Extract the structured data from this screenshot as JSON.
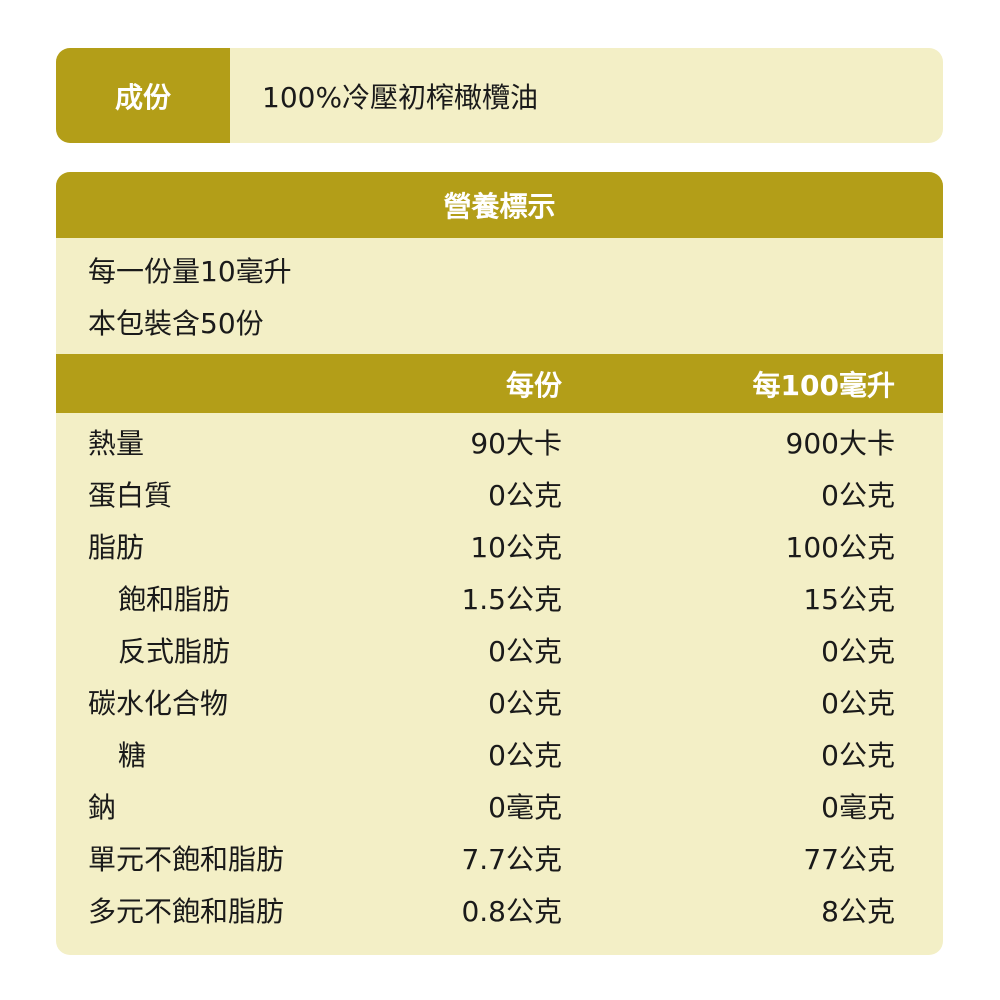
{
  "colors": {
    "accent": "#b39e18",
    "background": "#f3efc6"
  },
  "ingredients": {
    "label": "成份",
    "value": "100%冷壓初榨橄欖油"
  },
  "nutrition": {
    "title": "營養標示",
    "serving_size": "每一份量10毫升",
    "servings_per_pack": "本包裝含50份",
    "columns": [
      "每份",
      "每100毫升"
    ],
    "rows": [
      {
        "name": "熱量",
        "per_serving": "90大卡",
        "per_100": "900大卡",
        "indent": false
      },
      {
        "name": "蛋白質",
        "per_serving": "0公克",
        "per_100": "0公克",
        "indent": false
      },
      {
        "name": "脂肪",
        "per_serving": "10公克",
        "per_100": "100公克",
        "indent": false
      },
      {
        "name": "飽和脂肪",
        "per_serving": "1.5公克",
        "per_100": "15公克",
        "indent": true
      },
      {
        "name": "反式脂肪",
        "per_serving": "0公克",
        "per_100": "0公克",
        "indent": true
      },
      {
        "name": "碳水化合物",
        "per_serving": "0公克",
        "per_100": "0公克",
        "indent": false
      },
      {
        "name": "糖",
        "per_serving": "0公克",
        "per_100": "0公克",
        "indent": true
      },
      {
        "name": "鈉",
        "per_serving": "0毫克",
        "per_100": "0毫克",
        "indent": false
      },
      {
        "name": "單元不飽和脂肪",
        "per_serving": "7.7公克",
        "per_100": "77公克",
        "indent": false
      },
      {
        "name": "多元不飽和脂肪",
        "per_serving": "0.8公克",
        "per_100": "8公克",
        "indent": false
      }
    ]
  }
}
